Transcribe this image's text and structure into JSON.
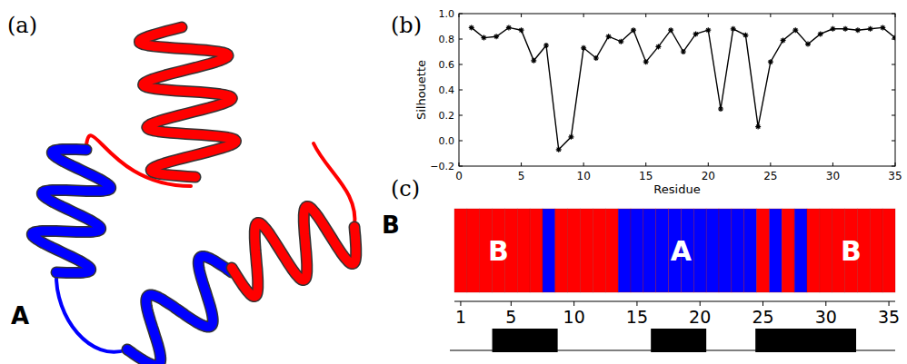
{
  "panel_labels": [
    "(a)",
    "(b)",
    "(c)"
  ],
  "structure_labels": [
    "A",
    "B"
  ],
  "chart_data": [
    {
      "type": "line",
      "x": [
        1,
        2,
        3,
        4,
        5,
        6,
        7,
        8,
        9,
        10,
        11,
        12,
        13,
        14,
        15,
        16,
        17,
        18,
        19,
        20,
        21,
        22,
        23,
        24,
        25,
        26,
        27,
        28,
        29,
        30,
        31,
        32,
        33,
        34,
        35
      ],
      "values": [
        0.89,
        0.81,
        0.82,
        0.89,
        0.87,
        0.63,
        0.75,
        -0.07,
        0.03,
        0.73,
        0.65,
        0.82,
        0.78,
        0.87,
        0.62,
        0.74,
        0.87,
        0.7,
        0.84,
        0.87,
        0.25,
        0.88,
        0.83,
        0.11,
        0.62,
        0.79,
        0.87,
        0.76,
        0.84,
        0.88,
        0.88,
        0.87,
        0.88,
        0.89,
        0.81
      ],
      "color": "#000000",
      "marker": "star",
      "xlabel": "Residue",
      "ylabel": "Silhouette",
      "xlim": [
        0,
        35
      ],
      "ylim": [
        -0.2,
        1.0
      ],
      "xticks": [
        0,
        5,
        10,
        15,
        20,
        25,
        30,
        35
      ],
      "yticks": [
        {
          "value": -0.2,
          "label": "−0.2"
        },
        {
          "value": 0,
          "label": "0.0"
        },
        {
          "value": 0.2,
          "label": "0.2"
        },
        {
          "value": 0.4,
          "label": "0.4"
        },
        {
          "value": 0.6,
          "label": "0.6"
        },
        {
          "value": 0.8,
          "label": "0.8"
        },
        {
          "value": 1.0,
          "label": "1.0"
        }
      ]
    },
    {
      "type": "strip",
      "categories": [
        1,
        2,
        3,
        4,
        5,
        6,
        7,
        8,
        9,
        10,
        11,
        12,
        13,
        14,
        15,
        16,
        17,
        18,
        19,
        20,
        21,
        22,
        23,
        24,
        25,
        26,
        27,
        28,
        29,
        30,
        31,
        32,
        33,
        34,
        35
      ],
      "cells": [
        "B",
        "B",
        "B",
        "B",
        "B",
        "B",
        "B",
        "A",
        "B",
        "B",
        "B",
        "B",
        "B",
        "A",
        "A",
        "A",
        "A",
        "A",
        "A",
        "A",
        "A",
        "A",
        "A",
        "A",
        "B",
        "A",
        "B",
        "A",
        "B",
        "B",
        "B",
        "B",
        "B",
        "B",
        "B"
      ],
      "series": [
        {
          "name": "A",
          "color": "#0000ff"
        },
        {
          "name": "B",
          "color": "#ff0000"
        }
      ],
      "annotations": [
        {
          "text": "B",
          "x": 4
        },
        {
          "text": "A",
          "x": 18.5
        },
        {
          "text": "B",
          "x": 32
        }
      ],
      "xlim": [
        0.5,
        35.5
      ],
      "xticks": [
        1,
        5,
        10,
        15,
        20,
        25,
        30,
        35
      ],
      "tick_labels": "x",
      "secondary_structure": [
        {
          "start": 3.5,
          "end": 8.7
        },
        {
          "start": 16.1,
          "end": 20.5
        },
        {
          "start": 24.4,
          "end": 32.4
        }
      ]
    }
  ]
}
